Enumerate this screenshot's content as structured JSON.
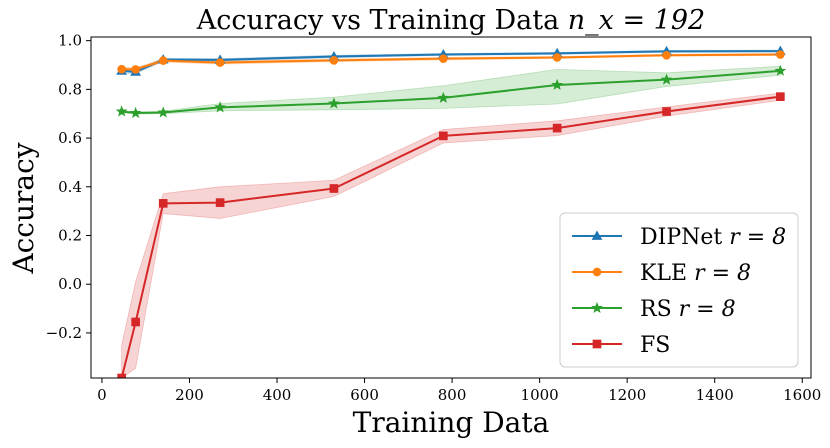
{
  "chart_data": {
    "type": "line",
    "title_text": "Accuracy vs Training Data",
    "title_math": "n_x = 192",
    "xlabel": "Training Data",
    "ylabel": "Accuracy",
    "xlim": [
      -25,
      1620
    ],
    "ylim": [
      -0.385,
      1.015
    ],
    "xticks": [
      0,
      200,
      400,
      600,
      800,
      1000,
      1200,
      1400,
      1600
    ],
    "xtick_labels": [
      "0",
      "200",
      "400",
      "600",
      "800",
      "1000",
      "1200",
      "1400",
      "1600"
    ],
    "yticks": [
      -0.2,
      0.0,
      0.2,
      0.4,
      0.6,
      0.8,
      1.0
    ],
    "ytick_labels": [
      "−0.2",
      "0.0",
      "0.2",
      "0.4",
      "0.6",
      "0.8",
      "1.0"
    ],
    "legend_position": "lower-right",
    "series": [
      {
        "name": "DIPNet r = 8",
        "label_text": "DIPNet",
        "label_math": "r = 8",
        "color": "#1f77b4",
        "marker": "triangle",
        "x": [
          45,
          77,
          140,
          270,
          530,
          780,
          1040,
          1290,
          1550
        ],
        "y": [
          0.876,
          0.872,
          0.922,
          0.921,
          0.935,
          0.943,
          0.948,
          0.956,
          0.957
        ],
        "band_lower": [
          0.868,
          0.864,
          0.916,
          0.916,
          0.93,
          0.939,
          0.944,
          0.952,
          0.953
        ],
        "band_upper": [
          0.884,
          0.88,
          0.928,
          0.926,
          0.94,
          0.947,
          0.952,
          0.96,
          0.961
        ]
      },
      {
        "name": "KLE r = 8",
        "label_text": "KLE",
        "label_math": "r = 8",
        "color": "#ff7f0e",
        "marker": "circle",
        "x": [
          45,
          77,
          140,
          270,
          530,
          780,
          1040,
          1290,
          1550
        ],
        "y": [
          0.883,
          0.882,
          0.918,
          0.91,
          0.919,
          0.926,
          0.931,
          0.94,
          0.943
        ],
        "band_lower": [
          0.876,
          0.875,
          0.912,
          0.904,
          0.914,
          0.921,
          0.927,
          0.936,
          0.939
        ],
        "band_upper": [
          0.89,
          0.889,
          0.924,
          0.916,
          0.924,
          0.931,
          0.935,
          0.944,
          0.947
        ]
      },
      {
        "name": "RS r = 8",
        "label_text": "RS",
        "label_math": "r = 8",
        "color": "#2ca02c",
        "marker": "star",
        "x": [
          45,
          77,
          140,
          270,
          530,
          780,
          1040,
          1290,
          1550
        ],
        "y": [
          0.709,
          0.703,
          0.705,
          0.726,
          0.742,
          0.765,
          0.818,
          0.84,
          0.876
        ],
        "band_lower": [
          0.705,
          0.699,
          0.7,
          0.712,
          0.716,
          0.722,
          0.74,
          0.812,
          0.858
        ],
        "band_upper": [
          0.713,
          0.707,
          0.71,
          0.742,
          0.768,
          0.815,
          0.882,
          0.868,
          0.895
        ]
      },
      {
        "name": "FS",
        "label_text": "FS",
        "label_math": "",
        "color": "#d62728",
        "marker": "square",
        "x": [
          45,
          77,
          140,
          270,
          530,
          780,
          1040,
          1290,
          1550
        ],
        "y": [
          -0.385,
          -0.155,
          0.332,
          0.335,
          0.393,
          0.609,
          0.641,
          0.709,
          0.77
        ],
        "band_lower": [
          -0.385,
          -0.345,
          0.29,
          0.27,
          0.36,
          0.58,
          0.61,
          0.69,
          0.755
        ],
        "band_upper": [
          -0.25,
          0.01,
          0.372,
          0.4,
          0.427,
          0.635,
          0.671,
          0.728,
          0.785
        ]
      }
    ]
  }
}
